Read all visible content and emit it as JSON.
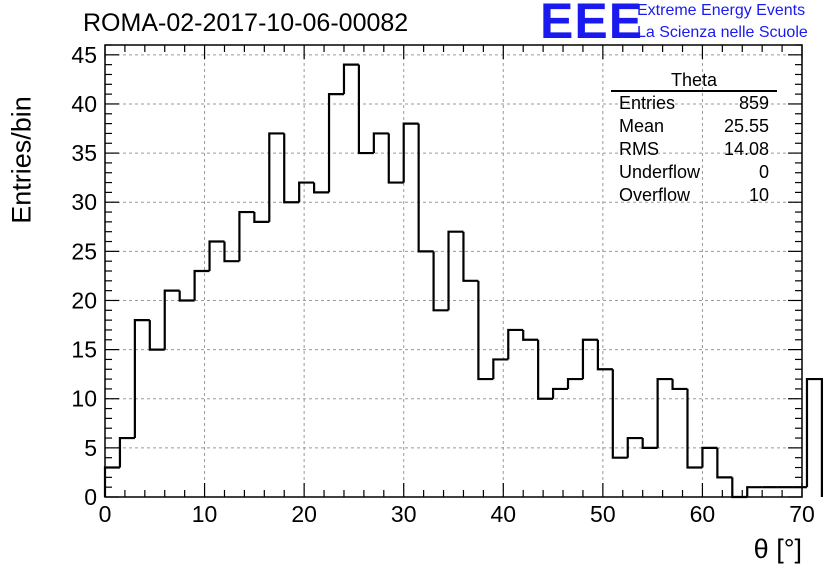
{
  "header": {
    "run_title": "ROMA-02-2017-10-06-00082",
    "logo_text": "EEE",
    "logo_line1": "Extreme Energy Events",
    "logo_line2": "La Scienza nelle Scuole",
    "logo_color": "#1a1aee"
  },
  "stats": {
    "name": "Theta",
    "rows": [
      {
        "label": "Entries",
        "value": "859"
      },
      {
        "label": "Mean",
        "value": "25.55"
      },
      {
        "label": "RMS",
        "value": "14.08"
      },
      {
        "label": "Underflow",
        "value": "0"
      },
      {
        "label": "Overflow",
        "value": "10"
      }
    ]
  },
  "chart_data": {
    "type": "bar",
    "subtype": "step histogram",
    "title": "ROMA-02-2017-10-06-00082",
    "xlabel": "θ [°]",
    "ylabel": "Entries/bin",
    "xlim": [
      0,
      70
    ],
    "ylim": [
      0,
      46
    ],
    "bin_width": 1.5,
    "x_ticks": [
      "0",
      "10",
      "20",
      "30",
      "40",
      "50",
      "60",
      "70"
    ],
    "y_ticks": [
      "0",
      "5",
      "10",
      "15",
      "20",
      "25",
      "30",
      "35",
      "40",
      "45"
    ],
    "grid": true,
    "bin_edges_start": 0,
    "values": [
      3,
      6,
      18,
      15,
      21,
      20,
      23,
      26,
      24,
      29,
      28,
      37,
      30,
      32,
      31,
      41,
      44,
      35,
      37,
      32,
      38,
      25,
      19,
      27,
      22,
      12,
      14,
      17,
      16,
      10,
      11,
      12,
      16,
      13,
      4,
      6,
      5,
      12,
      11,
      3,
      5,
      2,
      0,
      1,
      1,
      1,
      1,
      12
    ],
    "line_color": "#000000"
  }
}
